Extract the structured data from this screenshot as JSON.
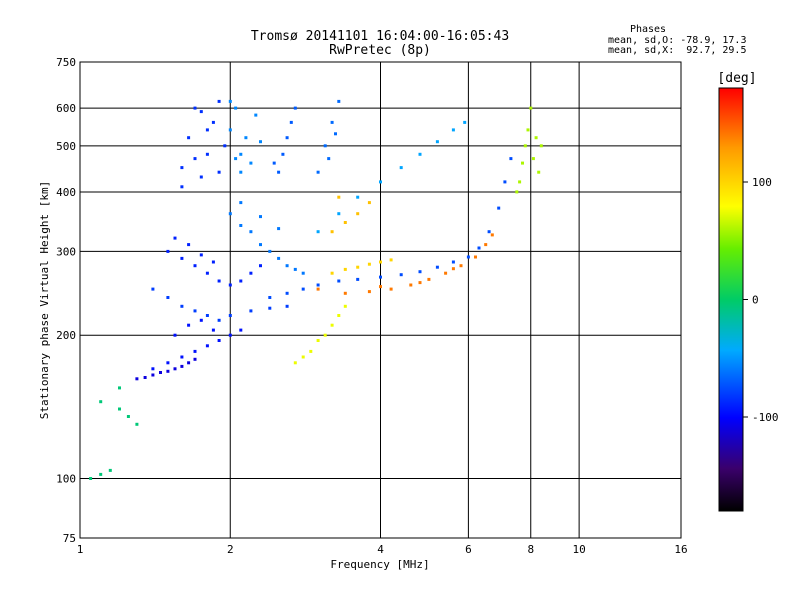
{
  "chart_data": {
    "type": "scatter",
    "title": "Tromsø 20141101 16:04:00-16:05:43",
    "subtitle": "RwPretec (8p)",
    "xlabel": "Frequency [MHz]",
    "ylabel": "Stationary phase Virtual Height [km]",
    "x_scale": "log",
    "y_scale": "log",
    "xlim": [
      1,
      16
    ],
    "ylim": [
      75,
      750
    ],
    "xticks": [
      1,
      2,
      4,
      6,
      8,
      10,
      16
    ],
    "xtick_labels": [
      "1",
      "2",
      "4",
      "6",
      "8",
      "10",
      "16"
    ],
    "yticks": [
      75,
      100,
      200,
      300,
      400,
      500,
      600,
      750
    ],
    "ytick_labels": [
      "75",
      "100",
      "200",
      "300",
      "400",
      "500",
      "600",
      "750"
    ],
    "grid": true,
    "stats": {
      "heading": "Phases",
      "lines": [
        "mean, sd,O: -78.9, 17.3",
        "mean, sd,X:  92.7, 29.5"
      ]
    },
    "colorbar": {
      "label": "[deg]",
      "range": [
        -180,
        180
      ],
      "ticks": [
        100,
        0,
        -100
      ],
      "tick_labels": [
        "100",
        "0",
        "-100"
      ],
      "colormap": "rainbow"
    },
    "series": [
      {
        "phase": -85,
        "points": [
          [
            1.6,
            450
          ],
          [
            1.65,
            520
          ],
          [
            1.7,
            600
          ],
          [
            1.75,
            430
          ],
          [
            1.8,
            480
          ],
          [
            1.85,
            560
          ],
          [
            1.9,
            620
          ],
          [
            1.95,
            500
          ],
          [
            1.7,
            470
          ],
          [
            1.8,
            540
          ],
          [
            1.6,
            410
          ],
          [
            1.9,
            440
          ],
          [
            1.75,
            590
          ]
        ]
      },
      {
        "phase": -55,
        "points": [
          [
            2.0,
            540
          ],
          [
            2.05,
            600
          ],
          [
            2.1,
            480
          ],
          [
            2.15,
            520
          ],
          [
            2.2,
            460
          ],
          [
            2.25,
            580
          ],
          [
            2.0,
            620
          ],
          [
            2.1,
            440
          ],
          [
            2.3,
            510
          ],
          [
            2.05,
            470
          ]
        ]
      },
      {
        "phase": -70,
        "points": [
          [
            2.5,
            440
          ],
          [
            2.6,
            520
          ],
          [
            2.7,
            600
          ],
          [
            2.55,
            480
          ],
          [
            2.65,
            560
          ],
          [
            2.45,
            460
          ]
        ]
      },
      {
        "phase": -65,
        "points": [
          [
            3.0,
            440
          ],
          [
            3.1,
            500
          ],
          [
            3.2,
            560
          ],
          [
            3.3,
            620
          ],
          [
            3.15,
            470
          ],
          [
            3.25,
            530
          ]
        ]
      },
      {
        "phase": -90,
        "points": [
          [
            1.5,
            300
          ],
          [
            1.6,
            290
          ],
          [
            1.7,
            280
          ],
          [
            1.8,
            270
          ],
          [
            1.9,
            260
          ],
          [
            2.0,
            255
          ],
          [
            2.1,
            260
          ],
          [
            2.2,
            270
          ],
          [
            2.3,
            280
          ],
          [
            1.55,
            320
          ],
          [
            1.65,
            310
          ],
          [
            1.75,
            295
          ],
          [
            1.85,
            285
          ]
        ]
      },
      {
        "phase": -80,
        "points": [
          [
            1.4,
            250
          ],
          [
            1.5,
            240
          ],
          [
            1.6,
            230
          ],
          [
            1.7,
            225
          ],
          [
            1.8,
            220
          ],
          [
            1.9,
            215
          ],
          [
            2.0,
            220
          ],
          [
            2.2,
            225
          ],
          [
            2.4,
            228
          ],
          [
            2.6,
            230
          ]
        ]
      },
      {
        "phase": -95,
        "points": [
          [
            1.4,
            170
          ],
          [
            1.5,
            175
          ],
          [
            1.6,
            180
          ],
          [
            1.7,
            185
          ],
          [
            1.8,
            190
          ],
          [
            1.9,
            195
          ],
          [
            2.0,
            200
          ],
          [
            2.1,
            205
          ],
          [
            1.55,
            200
          ],
          [
            1.65,
            210
          ],
          [
            1.75,
            215
          ],
          [
            1.85,
            205
          ]
        ]
      },
      {
        "phase": -110,
        "points": [
          [
            1.3,
            162
          ],
          [
            1.35,
            163
          ],
          [
            1.4,
            165
          ],
          [
            1.45,
            167
          ],
          [
            1.5,
            168
          ],
          [
            1.55,
            170
          ],
          [
            1.6,
            172
          ],
          [
            1.65,
            175
          ],
          [
            1.7,
            178
          ]
        ]
      },
      {
        "phase": -60,
        "points": [
          [
            2.0,
            360
          ],
          [
            2.1,
            340
          ],
          [
            2.2,
            330
          ],
          [
            2.3,
            310
          ],
          [
            2.4,
            300
          ],
          [
            2.5,
            290
          ],
          [
            2.6,
            280
          ],
          [
            2.7,
            275
          ],
          [
            2.8,
            270
          ],
          [
            2.1,
            380
          ],
          [
            2.3,
            355
          ],
          [
            2.5,
            335
          ]
        ]
      },
      {
        "phase": -75,
        "points": [
          [
            2.4,
            240
          ],
          [
            2.6,
            245
          ],
          [
            2.8,
            250
          ],
          [
            3.0,
            255
          ],
          [
            3.3,
            260
          ],
          [
            3.6,
            262
          ],
          [
            4.0,
            265
          ],
          [
            4.4,
            268
          ],
          [
            4.8,
            272
          ],
          [
            5.2,
            278
          ],
          [
            5.6,
            285
          ],
          [
            6.0,
            292
          ],
          [
            6.3,
            305
          ],
          [
            6.6,
            330
          ],
          [
            6.9,
            370
          ],
          [
            7.1,
            420
          ],
          [
            7.3,
            470
          ]
        ]
      },
      {
        "phase": -45,
        "points": [
          [
            3.0,
            330
          ],
          [
            3.3,
            360
          ],
          [
            3.6,
            390
          ],
          [
            4.0,
            420
          ],
          [
            4.4,
            450
          ],
          [
            4.8,
            480
          ],
          [
            5.2,
            510
          ],
          [
            5.6,
            540
          ],
          [
            5.9,
            560
          ]
        ]
      },
      {
        "phase": 140,
        "points": [
          [
            3.0,
            250
          ],
          [
            3.4,
            245
          ],
          [
            3.8,
            247
          ],
          [
            4.2,
            250
          ],
          [
            4.6,
            255
          ],
          [
            5.0,
            262
          ],
          [
            5.4,
            270
          ],
          [
            5.8,
            280
          ],
          [
            6.2,
            292
          ],
          [
            6.5,
            310
          ],
          [
            6.7,
            325
          ],
          [
            4.0,
            253
          ],
          [
            4.8,
            258
          ],
          [
            5.6,
            276
          ]
        ]
      },
      {
        "phase": 100,
        "points": [
          [
            3.2,
            270
          ],
          [
            3.4,
            275
          ],
          [
            3.6,
            278
          ],
          [
            3.8,
            282
          ],
          [
            4.0,
            285
          ],
          [
            4.2,
            288
          ]
        ]
      },
      {
        "phase": 110,
        "points": [
          [
            3.2,
            330
          ],
          [
            3.4,
            345
          ],
          [
            3.6,
            360
          ],
          [
            3.8,
            380
          ],
          [
            3.3,
            390
          ]
        ]
      },
      {
        "phase": 75,
        "points": [
          [
            2.7,
            175
          ],
          [
            2.8,
            180
          ],
          [
            2.9,
            185
          ],
          [
            3.0,
            195
          ],
          [
            3.1,
            200
          ],
          [
            3.2,
            210
          ],
          [
            3.3,
            220
          ],
          [
            3.4,
            230
          ]
        ]
      },
      {
        "phase": 60,
        "points": [
          [
            7.6,
            420
          ],
          [
            7.7,
            460
          ],
          [
            7.8,
            500
          ],
          [
            7.9,
            540
          ],
          [
            8.1,
            470
          ],
          [
            8.3,
            440
          ],
          [
            8.4,
            500
          ],
          [
            8.2,
            520
          ],
          [
            7.5,
            400
          ],
          [
            8.0,
            600
          ]
        ]
      },
      {
        "phase": -5,
        "points": [
          [
            1.05,
            100
          ],
          [
            1.1,
            102
          ],
          [
            1.15,
            104
          ],
          [
            1.2,
            140
          ],
          [
            1.25,
            135
          ],
          [
            1.3,
            130
          ],
          [
            1.1,
            145
          ],
          [
            1.2,
            155
          ]
        ]
      }
    ]
  }
}
